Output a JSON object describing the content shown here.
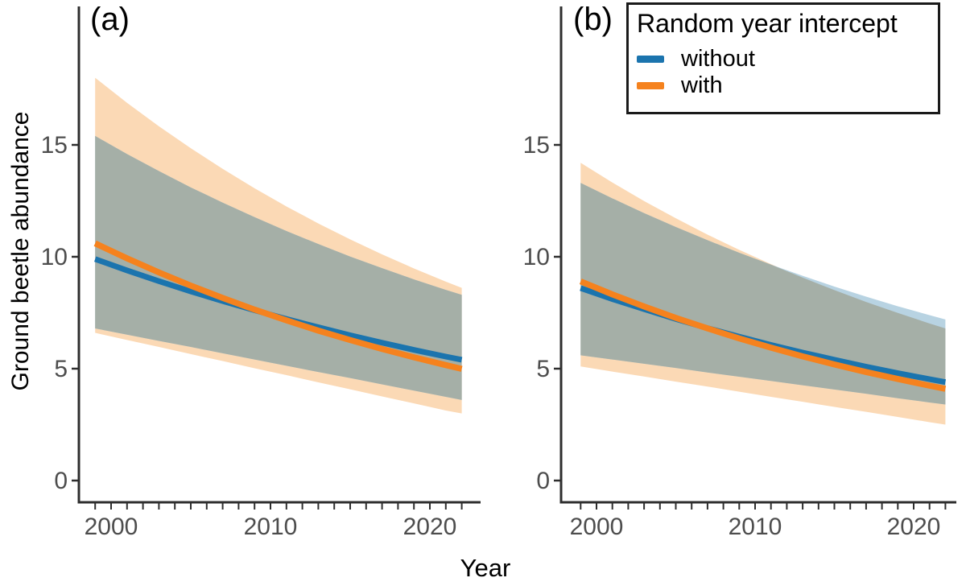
{
  "figure": {
    "y_axis_title": "Ground beetle abundance",
    "x_axis_title": "Year",
    "panel_a_label": "(a)",
    "panel_b_label": "(b)"
  },
  "legend": {
    "title": "Random year intercept",
    "position": "top-right",
    "items": [
      {
        "label": "without",
        "color": "#1B74AE"
      },
      {
        "label": "with",
        "color": "#F5821E"
      }
    ]
  },
  "palette": {
    "blue_line": "#1B74AE",
    "orange_line": "#F5821E",
    "blue_band": "#B8D3E2",
    "orange_band": "#FBD9B5",
    "overlap_band": "#A5AFA7",
    "axis_line": "#2e2e2e",
    "tick_label": "#4d4d4d"
  },
  "chart_data": [
    {
      "type": "line",
      "panel_key": "a",
      "panel_label": "(a)",
      "title": "",
      "xlabel": "Year",
      "ylabel": "Ground beetle abundance",
      "grid": false,
      "xlim": [
        1998.9,
        2023.2
      ],
      "ylim": [
        0,
        19.3
      ],
      "yticks": [
        0,
        5,
        10,
        15
      ],
      "xticks_labeled": [
        2000,
        2010,
        2020
      ],
      "xticks_minor_range": [
        1999,
        2022
      ],
      "x": [
        1999,
        2001,
        2003,
        2005,
        2007,
        2009,
        2011,
        2013,
        2015,
        2017,
        2019,
        2021,
        2022
      ],
      "series": [
        {
          "name": "without",
          "line": [
            9.9,
            9.39,
            8.91,
            8.45,
            8.02,
            7.61,
            7.22,
            6.85,
            6.49,
            6.16,
            5.84,
            5.54,
            5.4
          ],
          "ci_upper": [
            15.4,
            14.59,
            13.83,
            13.1,
            12.42,
            11.77,
            11.15,
            10.57,
            10.01,
            9.49,
            8.99,
            8.52,
            8.3
          ],
          "ci_lower": [
            6.8,
            6.52,
            6.24,
            5.97,
            5.69,
            5.41,
            5.13,
            4.85,
            4.58,
            4.3,
            4.02,
            3.74,
            3.6
          ]
        },
        {
          "name": "with",
          "line": [
            10.6,
            9.93,
            9.3,
            8.71,
            8.16,
            7.64,
            7.16,
            6.7,
            6.28,
            5.88,
            5.51,
            5.16,
            4.99
          ],
          "ci_upper": [
            18.0,
            16.88,
            15.83,
            14.85,
            13.93,
            13.06,
            12.25,
            11.49,
            10.78,
            10.11,
            9.48,
            8.89,
            8.61
          ],
          "ci_lower": [
            6.6,
            6.28,
            5.97,
            5.65,
            5.34,
            5.02,
            4.71,
            4.39,
            4.08,
            3.76,
            3.45,
            3.13,
            3.0
          ]
        }
      ]
    },
    {
      "type": "line",
      "panel_key": "b",
      "panel_label": "(b)",
      "title": "",
      "xlabel": "Year",
      "ylabel": "Ground beetle abundance",
      "grid": false,
      "xlim": [
        1998.9,
        2023.2
      ],
      "ylim": [
        0,
        19.3
      ],
      "yticks": [
        0,
        5,
        10,
        15
      ],
      "xticks_labeled": [
        2000,
        2010,
        2020
      ],
      "xticks_minor_range": [
        1999,
        2022
      ],
      "x": [
        1999,
        2001,
        2003,
        2005,
        2007,
        2009,
        2011,
        2013,
        2015,
        2017,
        2019,
        2021,
        2022
      ],
      "series": [
        {
          "name": "without",
          "line": [
            8.6,
            8.11,
            7.66,
            7.22,
            6.81,
            6.43,
            6.06,
            5.72,
            5.4,
            5.09,
            4.8,
            4.53,
            4.4
          ],
          "ci_upper": [
            13.3,
            12.61,
            11.95,
            11.33,
            10.74,
            10.18,
            9.65,
            9.15,
            8.67,
            8.22,
            7.79,
            7.39,
            7.2
          ],
          "ci_lower": [
            5.6,
            5.41,
            5.22,
            5.03,
            4.83,
            4.64,
            4.45,
            4.26,
            4.07,
            3.88,
            3.68,
            3.49,
            3.4
          ]
        },
        {
          "name": "with",
          "line": [
            8.9,
            8.32,
            7.78,
            7.27,
            6.8,
            6.35,
            5.94,
            5.55,
            5.19,
            4.85,
            4.54,
            4.24,
            4.1
          ],
          "ci_upper": [
            14.2,
            13.32,
            12.49,
            11.72,
            10.99,
            10.31,
            9.67,
            9.07,
            8.51,
            7.98,
            7.49,
            7.02,
            6.8
          ],
          "ci_lower": [
            5.1,
            4.87,
            4.65,
            4.42,
            4.2,
            3.97,
            3.74,
            3.52,
            3.29,
            3.07,
            2.84,
            2.61,
            2.5
          ]
        }
      ]
    }
  ]
}
